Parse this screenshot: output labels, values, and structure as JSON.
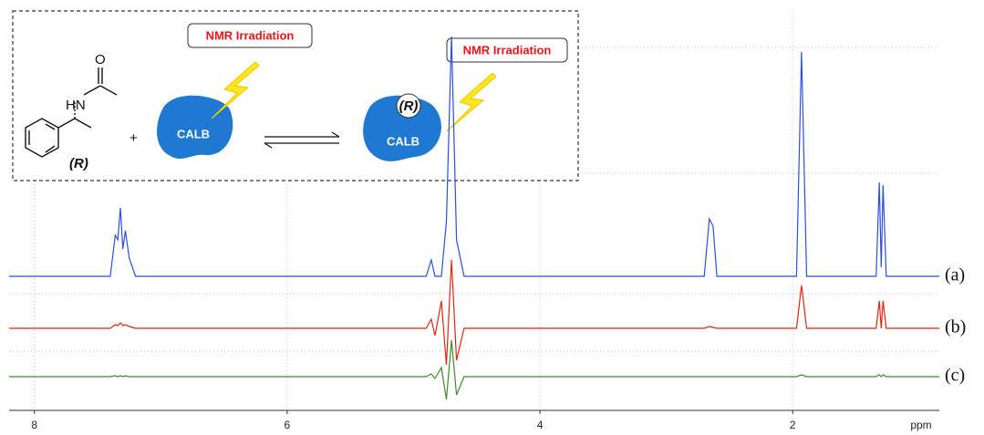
{
  "chart_data": {
    "type": "line",
    "x_label": "ppm",
    "xlim": [
      8.2,
      0.84
    ],
    "xticks": [
      8,
      6,
      4,
      2
    ],
    "ylim": [
      -60,
      270
    ],
    "grid": true,
    "x": [
      8.2,
      7.4,
      7.36,
      7.34,
      7.32,
      7.3,
      7.28,
      7.25,
      7.2,
      4.9,
      4.86,
      4.83,
      4.78,
      4.74,
      4.7,
      4.66,
      4.6,
      2.7,
      2.66,
      2.63,
      2.6,
      1.97,
      1.93,
      1.89,
      1.34,
      1.315,
      1.3,
      1.285,
      1.26,
      0.84
    ],
    "series": [
      {
        "name": "(a)",
        "color": "#2b4fe0",
        "values": [
          0,
          0,
          45,
          40,
          75,
          30,
          50,
          20,
          0,
          0,
          18,
          0,
          0,
          60,
          263,
          40,
          0,
          0,
          63,
          55,
          0,
          0,
          246,
          0,
          0,
          103,
          10,
          100,
          0,
          0
        ]
      },
      {
        "name": "(b)",
        "color": "#e8230f",
        "values": [
          0,
          0,
          4,
          3,
          6,
          3,
          4,
          2,
          0,
          0,
          10,
          -8,
          30,
          -40,
          75,
          -35,
          0,
          0,
          2,
          1,
          0,
          0,
          47,
          0,
          0,
          30,
          0,
          30,
          0,
          0
        ]
      },
      {
        "name": "(c)",
        "color": "#3c8a2e",
        "values": [
          0,
          0,
          1,
          0,
          1,
          0,
          1,
          0,
          0,
          0,
          3,
          -2,
          10,
          -25,
          40,
          -20,
          0,
          0,
          0,
          0,
          0,
          0,
          2,
          0,
          0,
          2,
          0,
          2,
          0,
          0
        ]
      }
    ]
  },
  "annotations": [
    "NMR Irradiation",
    "NMR Irradiation",
    "CALB",
    "CALB",
    "(R)",
    "(R)",
    "HN",
    "O",
    "+"
  ]
}
